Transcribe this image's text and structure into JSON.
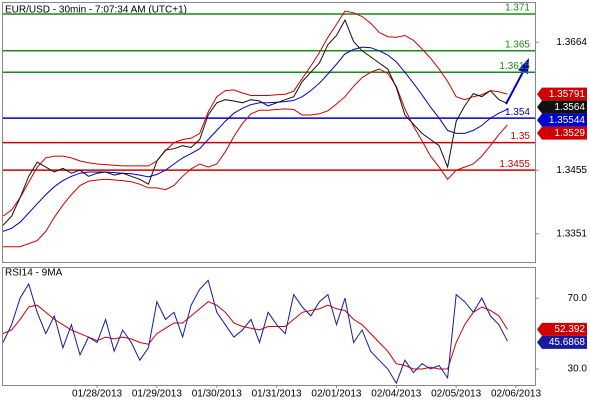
{
  "chart_data": [
    {
      "type": "line",
      "title": "EUR/USD - 30min - 7:07:34 AM (UTC+1)",
      "ylim": [
        1.3305,
        1.3728
      ],
      "yticks": [
        1.3664,
        1.3455,
        1.3351
      ],
      "hlines": [
        {
          "value": 1.371,
          "color": "#1a8a1a"
        },
        {
          "value": 1.365,
          "color": "#1a8a1a"
        },
        {
          "value": 1.3615,
          "color": "#1a8a1a"
        },
        {
          "value": 1.354,
          "color": "#0000cc"
        },
        {
          "value": 1.35,
          "color": "#d00000"
        },
        {
          "value": 1.3455,
          "color": "#d00000"
        }
      ],
      "series": [
        {
          "color": "#d00000",
          "values": [
            1.338,
            1.339,
            1.341,
            1.3435,
            1.346,
            1.3475,
            1.3478,
            1.3478,
            1.3475,
            1.347,
            1.3467,
            1.3465,
            1.3464,
            1.3463,
            1.3462,
            1.3462,
            1.3462,
            1.3462,
            1.347,
            1.3487,
            1.35,
            1.3505,
            1.3507,
            1.3515,
            1.355,
            1.3575,
            1.3585,
            1.3586,
            1.3581,
            1.3577,
            1.3577,
            1.3577,
            1.3578,
            1.3579,
            1.3584,
            1.3605,
            1.3625,
            1.3647,
            1.3672,
            1.3693,
            1.3715,
            1.3712,
            1.3706,
            1.3695,
            1.368,
            1.3673,
            1.3672,
            1.3675,
            1.3667,
            1.3653,
            1.3638,
            1.362,
            1.36,
            1.3575,
            1.357,
            1.3575,
            1.3578,
            1.3585,
            1.3583,
            1.35791,
            null,
            null,
            null
          ]
        },
        {
          "color": "#d00000",
          "values": [
            1.333,
            1.333,
            1.333,
            1.3335,
            1.334,
            1.3355,
            1.3378,
            1.3398,
            1.3415,
            1.343,
            1.3437,
            1.3439,
            1.344,
            1.3439,
            1.3438,
            1.3436,
            1.3432,
            1.3426,
            1.3426,
            1.3423,
            1.343,
            1.3445,
            1.3457,
            1.3465,
            1.346,
            1.3465,
            1.3485,
            1.351,
            1.3531,
            1.3547,
            1.3553,
            1.3553,
            1.3554,
            1.3555,
            1.3554,
            1.3545,
            1.3545,
            1.3547,
            1.3552,
            1.3563,
            1.3575,
            1.3592,
            1.3606,
            1.3615,
            1.362,
            1.3613,
            1.3592,
            1.3555,
            1.3527,
            1.3503,
            1.3478,
            1.346,
            1.344,
            1.3455,
            1.346,
            1.3465,
            1.3478,
            1.3495,
            1.3513,
            1.3529,
            null,
            null,
            null
          ]
        },
        {
          "color": "#0000cc",
          "values": [
            1.3355,
            1.336,
            1.337,
            1.3385,
            1.34,
            1.3415,
            1.3428,
            1.3438,
            1.3445,
            1.345,
            1.3452,
            1.3452,
            1.3452,
            1.3451,
            1.345,
            1.3449,
            1.3447,
            1.3444,
            1.3448,
            1.3455,
            1.3465,
            1.3475,
            1.3482,
            1.349,
            1.3505,
            1.352,
            1.3535,
            1.3548,
            1.3556,
            1.3562,
            1.3565,
            1.3565,
            1.3566,
            1.3567,
            1.3569,
            1.3575,
            1.3585,
            1.3597,
            1.3612,
            1.3628,
            1.3645,
            1.3652,
            1.3656,
            1.3655,
            1.365,
            1.3643,
            1.3632,
            1.3615,
            1.3597,
            1.3578,
            1.3558,
            1.354,
            1.352,
            1.3515,
            1.3515,
            1.352,
            1.3528,
            1.354,
            1.3548,
            1.35544,
            null,
            null,
            null
          ]
        },
        {
          "color": "#111111",
          "values": [
            1.3365,
            1.338,
            1.341,
            1.3445,
            1.3468,
            1.346,
            1.3452,
            1.3458,
            1.345,
            1.3455,
            1.3445,
            1.345,
            1.3452,
            1.3447,
            1.345,
            1.3445,
            1.344,
            1.3432,
            1.347,
            1.3488,
            1.349,
            1.3495,
            1.3492,
            1.3505,
            1.3545,
            1.3565,
            1.357,
            1.3568,
            1.3565,
            1.357,
            1.3568,
            1.356,
            1.3565,
            1.357,
            1.3575,
            1.36,
            1.3615,
            1.363,
            1.366,
            1.3675,
            1.37,
            1.3665,
            1.365,
            1.364,
            1.363,
            1.362,
            1.359,
            1.3545,
            1.353,
            1.3515,
            1.3505,
            1.3495,
            1.346,
            1.3535,
            1.356,
            1.358,
            1.3575,
            1.3585,
            1.357,
            1.3564,
            null,
            null,
            null
          ]
        }
      ]
    },
    {
      "type": "line",
      "title": "RSI14 - 9MA",
      "ylim": [
        21,
        87
      ],
      "yticks": [
        {
          "value": 70,
          "label": "70.0"
        },
        {
          "value": 30,
          "label": "30.0"
        }
      ],
      "categories": [
        null,
        null,
        null,
        null,
        null,
        null,
        null,
        null,
        null,
        null,
        null,
        "01/28/2013",
        null,
        null,
        null,
        null,
        null,
        null,
        "01/29/2013",
        null,
        null,
        null,
        null,
        null,
        null,
        "01/30/2013",
        null,
        null,
        null,
        null,
        null,
        null,
        "01/31/2013",
        null,
        null,
        null,
        null,
        null,
        null,
        "02/01/2013",
        null,
        null,
        null,
        null,
        null,
        null,
        "02/04/2013",
        null,
        null,
        null,
        null,
        null,
        null,
        "02/05/2013",
        null,
        null,
        null,
        null,
        null,
        null,
        "02/06/2013",
        null,
        null
      ],
      "series": [
        {
          "color": "#d00000",
          "values": [
            50,
            52,
            58,
            65,
            66,
            62,
            58,
            55,
            52,
            50,
            48,
            46,
            48,
            47,
            48,
            47,
            45,
            44,
            50,
            53,
            56,
            56,
            60,
            64,
            68,
            66,
            62,
            56,
            54,
            53,
            52,
            54,
            54,
            54,
            58,
            62,
            63,
            64,
            66,
            64,
            63,
            58,
            55,
            50,
            45,
            40,
            33,
            32,
            30,
            30,
            31,
            30,
            30,
            45,
            55,
            62,
            65,
            63,
            60,
            52.392,
            null,
            null,
            null
          ]
        },
        {
          "color": "#1a1aa0",
          "values": [
            45,
            55,
            70,
            78,
            62,
            50,
            60,
            42,
            55,
            38,
            48,
            45,
            58,
            40,
            52,
            45,
            35,
            42,
            68,
            58,
            62,
            48,
            66,
            75,
            80,
            62,
            55,
            48,
            52,
            58,
            45,
            62,
            55,
            50,
            72,
            65,
            60,
            68,
            72,
            55,
            70,
            45,
            52,
            40,
            35,
            30,
            22,
            35,
            28,
            33,
            30,
            32,
            25,
            72,
            68,
            62,
            70,
            60,
            55,
            45.6868,
            null,
            null,
            null
          ]
        }
      ]
    }
  ]
}
